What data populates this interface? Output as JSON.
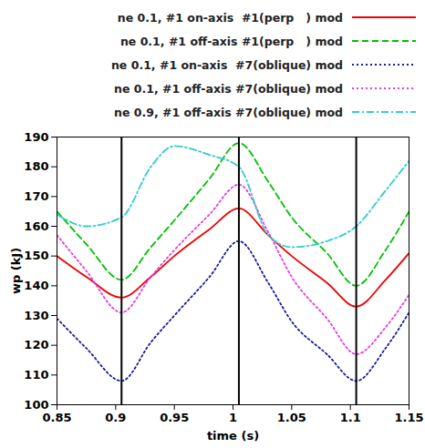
{
  "chart_data": {
    "type": "line",
    "x_label": "time (s)",
    "y_label": "wp (kJ)",
    "x": [
      0.85,
      0.875,
      0.905,
      0.93,
      0.95,
      0.98,
      1.005,
      1.03,
      1.05,
      1.08,
      1.105,
      1.13,
      1.15
    ],
    "series": [
      {
        "name": "ne 0.1, #1 on-axis  #1(perp   ) mod",
        "color": "#ee0000",
        "line_style": "solid",
        "values": [
          150,
          143,
          136,
          143,
          150,
          159,
          166,
          157,
          150,
          141,
          133,
          142,
          151
        ]
      },
      {
        "name": "ne 0.1, #1 off-axis #1(perp   ) mod",
        "color": "#00c000",
        "line_style": "dashed",
        "values": [
          165,
          154,
          142,
          153,
          162,
          176,
          188,
          175,
          163,
          151,
          140,
          152,
          165
        ]
      },
      {
        "name": "ne 0.1, #1 on-axis  #7(oblique) mod",
        "color": "#1a1a9a",
        "line_style": "dotted",
        "values": [
          129,
          119,
          108,
          121,
          130,
          143,
          155,
          141,
          128,
          117,
          108,
          119,
          131
        ]
      },
      {
        "name": "ne 0.1, #1 off-axis #7(oblique) mod",
        "color": "#e040e0",
        "line_style": "dotted",
        "values": [
          157,
          145,
          131,
          143,
          152,
          164,
          174,
          158,
          143,
          129,
          117,
          126,
          137
        ]
      },
      {
        "name": "ne 0.9, #1 off-axis #7(oblique) mod",
        "color": "#33cccc",
        "line_style": "dashdot",
        "values": [
          164,
          160,
          163,
          180,
          187,
          184,
          180,
          157,
          153,
          155,
          160,
          172,
          182
        ]
      }
    ],
    "vlines": [
      0.905,
      1.005,
      1.105
    ],
    "xlim": [
      0.85,
      1.15
    ],
    "xticks": [
      0.85,
      0.9,
      0.95,
      1,
      1.05,
      1.1,
      1.15
    ],
    "ylim": [
      100,
      190
    ],
    "yticks": [
      100,
      110,
      120,
      130,
      140,
      150,
      160,
      170,
      180,
      190
    ],
    "grid": false,
    "legend": "top"
  }
}
